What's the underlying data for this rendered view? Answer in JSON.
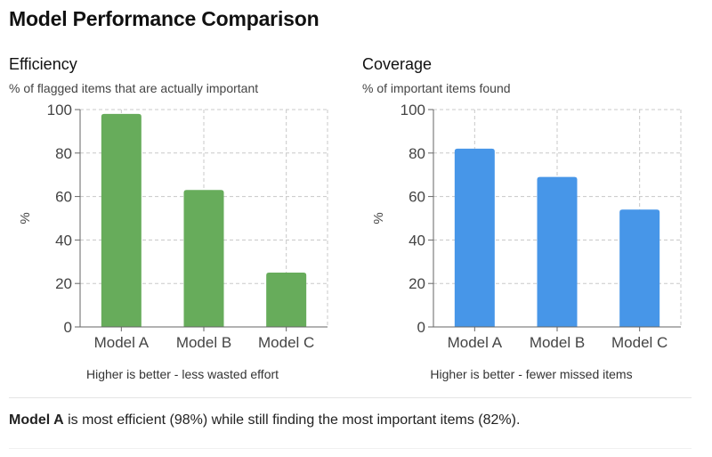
{
  "page": {
    "title": "Model Performance Comparison",
    "summary_bold": "Model A",
    "summary_rest": " is most efficient (98%) while still finding the most important items (82%)."
  },
  "chart_data": [
    {
      "type": "bar",
      "title": "Efficiency",
      "subtitle": "% of flagged items that are actually important",
      "note": "Higher is better - less wasted effort",
      "categories": [
        "Model A",
        "Model B",
        "Model C"
      ],
      "values": [
        98,
        63,
        25
      ],
      "ylabel": "%",
      "xlabel": "",
      "ylim": [
        0,
        100
      ],
      "yticks": [
        0,
        20,
        40,
        60,
        80,
        100
      ],
      "grid": true,
      "color": "#67ac5b"
    },
    {
      "type": "bar",
      "title": "Coverage",
      "subtitle": "% of important items found",
      "note": "Higher is better - fewer missed items",
      "categories": [
        "Model A",
        "Model B",
        "Model C"
      ],
      "values": [
        82,
        69,
        54
      ],
      "ylabel": "%",
      "xlabel": "",
      "ylim": [
        0,
        100
      ],
      "yticks": [
        0,
        20,
        40,
        60,
        80,
        100
      ],
      "grid": true,
      "color": "#4796e8"
    }
  ]
}
